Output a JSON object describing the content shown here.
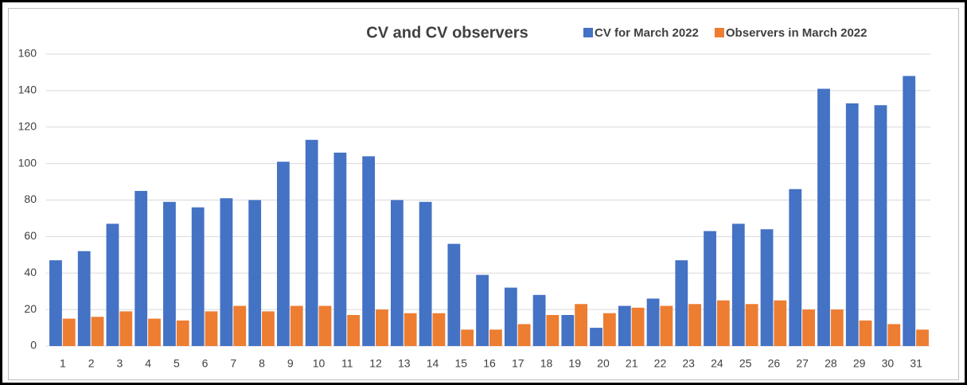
{
  "chart_data": {
    "type": "bar",
    "title": "CV and CV observers",
    "categories": [
      "1",
      "2",
      "3",
      "4",
      "5",
      "6",
      "7",
      "8",
      "9",
      "10",
      "11",
      "12",
      "13",
      "14",
      "15",
      "16",
      "17",
      "18",
      "19",
      "20",
      "21",
      "22",
      "23",
      "24",
      "25",
      "26",
      "27",
      "28",
      "29",
      "30",
      "31"
    ],
    "series": [
      {
        "name": "CV for March 2022",
        "color": "#4472c4",
        "values": [
          47,
          52,
          67,
          85,
          79,
          76,
          81,
          80,
          101,
          113,
          106,
          104,
          80,
          79,
          56,
          39,
          32,
          28,
          17,
          10,
          22,
          26,
          47,
          63,
          67,
          64,
          86,
          141,
          133,
          132,
          148
        ]
      },
      {
        "name": "Observers in March 2022",
        "color": "#ed7d31",
        "values": [
          15,
          16,
          19,
          15,
          14,
          19,
          22,
          19,
          22,
          22,
          17,
          20,
          18,
          18,
          9,
          9,
          12,
          17,
          23,
          18,
          21,
          22,
          23,
          25,
          23,
          25,
          20,
          20,
          14,
          12,
          9
        ]
      }
    ],
    "ylim": [
      0,
      160
    ],
    "yticks": [
      0,
      20,
      40,
      60,
      80,
      100,
      120,
      140,
      160
    ],
    "grid": true,
    "legend": "top-right"
  }
}
